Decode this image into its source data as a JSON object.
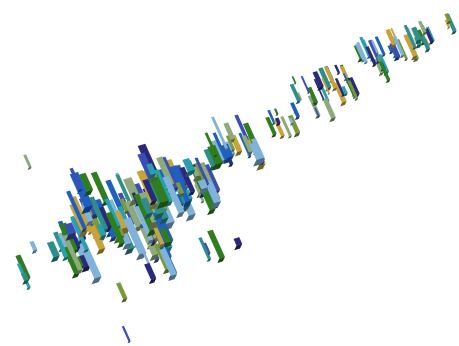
{
  "render": {
    "background": "#ffffff",
    "palette": {
      "navy": "#2a2a7a",
      "blue": "#1f5fbf",
      "royal": "#3a4fb5",
      "cyan": "#2a9fb0",
      "teal": "#2e8f8a",
      "green": "#2e7d1f",
      "olive": "#7a9a3a",
      "sage": "#8faa7a",
      "gold": "#c8a33a",
      "light": "#7fb3d9"
    }
  }
}
